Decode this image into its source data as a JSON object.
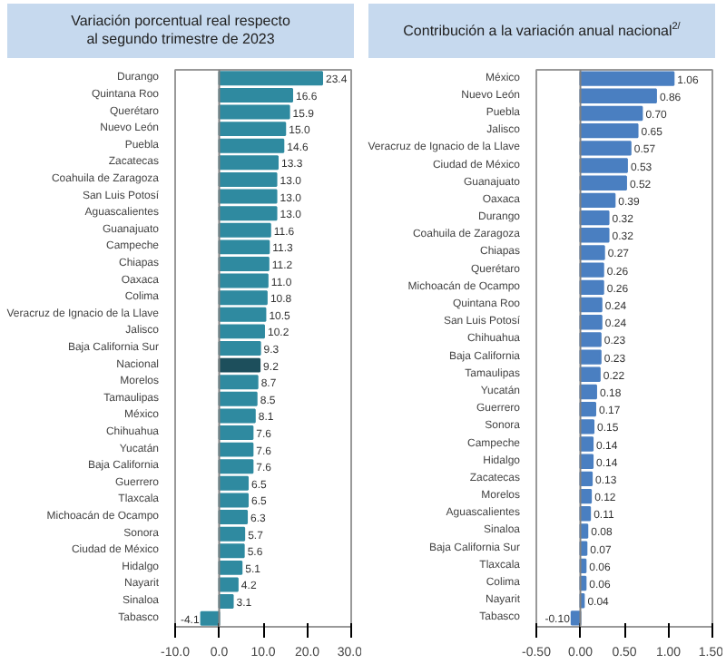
{
  "chart_data": [
    {
      "type": "bar",
      "orientation": "horizontal",
      "title": "Variación porcentual real respecto\nal segundo trimestre de 2023",
      "categories": [
        "Durango",
        "Quintana Roo",
        "Querétaro",
        "Nuevo León",
        "Puebla",
        "Zacatecas",
        "Coahuila de Zaragoza",
        "San Luis Potosí",
        "Aguascalientes",
        "Guanajuato",
        "Campeche",
        "Chiapas",
        "Oaxaca",
        "Colima",
        "Veracruz de Ignacio de la Llave",
        "Jalisco",
        "Baja California Sur",
        "Nacional",
        "Morelos",
        "Tamaulipas",
        "México",
        "Chihuahua",
        "Yucatán",
        "Baja California",
        "Guerrero",
        "Tlaxcala",
        "Michoacán de Ocampo",
        "Sonora",
        "Ciudad de México",
        "Hidalgo",
        "Nayarit",
        "Sinaloa",
        "Tabasco"
      ],
      "values": [
        23.4,
        16.6,
        15.9,
        15.0,
        14.6,
        13.3,
        13.0,
        13.0,
        13.0,
        11.6,
        11.3,
        11.2,
        11.0,
        10.8,
        10.5,
        10.2,
        9.3,
        9.2,
        8.7,
        8.5,
        8.1,
        7.6,
        7.6,
        7.6,
        6.5,
        6.5,
        6.3,
        5.7,
        5.6,
        5.1,
        4.2,
        3.1,
        -4.1
      ],
      "value_labels": [
        "23.4",
        "16.6",
        "15.9",
        "15.0",
        "14.6",
        "13.3",
        "13.0",
        "13.0",
        "13.0",
        "11.6",
        "11.3",
        "11.2",
        "11.0",
        "10.8",
        "10.5",
        "10.2",
        "9.3",
        "9.2",
        "8.7",
        "8.5",
        "8.1",
        "7.6",
        "7.6",
        "7.6",
        "6.5",
        "6.5",
        "6.3",
        "5.7",
        "5.6",
        "5.1",
        "4.2",
        "3.1",
        "-4.1"
      ],
      "colors": [
        "#2f8aa0",
        "#2f8aa0",
        "#2f8aa0",
        "#2f8aa0",
        "#2f8aa0",
        "#2f8aa0",
        "#2f8aa0",
        "#2f8aa0",
        "#2f8aa0",
        "#2f8aa0",
        "#2f8aa0",
        "#2f8aa0",
        "#2f8aa0",
        "#2f8aa0",
        "#2f8aa0",
        "#2f8aa0",
        "#2f8aa0",
        "#1d4f5c",
        "#2f8aa0",
        "#2f8aa0",
        "#2f8aa0",
        "#2f8aa0",
        "#2f8aa0",
        "#2f8aa0",
        "#2f8aa0",
        "#2f8aa0",
        "#2f8aa0",
        "#2f8aa0",
        "#2f8aa0",
        "#2f8aa0",
        "#2f8aa0",
        "#2f8aa0",
        "#2f8aa0"
      ],
      "xlim": [
        -10,
        30
      ],
      "xticks": [
        {
          "value": -10,
          "label": "-10.0"
        },
        {
          "value": 0,
          "label": "0.0"
        },
        {
          "value": 10,
          "label": "10.0"
        },
        {
          "value": 20,
          "label": "20.0"
        },
        {
          "value": 30,
          "label": "30.0"
        }
      ],
      "ref_lines": [
        {
          "axis": "x",
          "value": 0,
          "color": "#808080"
        }
      ],
      "grid": false
    },
    {
      "type": "bar",
      "orientation": "horizontal",
      "title": "Contribución a la variación anual nacional$^{2/}$",
      "categories": [
        "México",
        "Nuevo León",
        "Puebla",
        "Jalisco",
        "Veracruz de Ignacio de la Llave",
        "Ciudad de México",
        "Guanajuato",
        "Oaxaca",
        "Durango",
        "Coahuila de Zaragoza",
        "Chiapas",
        "Querétaro",
        "Michoacán de Ocampo",
        "Quintana Roo",
        "San Luis Potosí",
        "Chihuahua",
        "Baja California",
        "Tamaulipas",
        "Yucatán",
        "Guerrero",
        "Sonora",
        "Campeche",
        "Hidalgo",
        "Zacatecas",
        "Morelos",
        "Aguascalientes",
        "Sinaloa",
        "Baja California Sur",
        "Tlaxcala",
        "Colima",
        "Nayarit",
        "Tabasco"
      ],
      "values": [
        1.06,
        0.86,
        0.7,
        0.65,
        0.57,
        0.53,
        0.52,
        0.39,
        0.32,
        0.32,
        0.27,
        0.26,
        0.26,
        0.24,
        0.24,
        0.23,
        0.23,
        0.22,
        0.18,
        0.17,
        0.15,
        0.14,
        0.14,
        0.13,
        0.12,
        0.11,
        0.08,
        0.07,
        0.06,
        0.06,
        0.04,
        -0.1
      ],
      "value_labels": [
        "1.06",
        "0.86",
        "0.70",
        "0.65",
        "0.57",
        "0.53",
        "0.52",
        "0.39",
        "0.32",
        "0.32",
        "0.27",
        "0.26",
        "0.26",
        "0.24",
        "0.24",
        "0.23",
        "0.23",
        "0.22",
        "0.18",
        "0.17",
        "0.15",
        "0.14",
        "0.14",
        "0.13",
        "0.12",
        "0.11",
        "0.08",
        "0.07",
        "0.06",
        "0.06",
        "0.04",
        "-0.10"
      ],
      "color": "#4a7fc1",
      "xlim": [
        -0.5,
        1.5
      ],
      "xticks": [
        {
          "value": -0.5,
          "label": "-0.50"
        },
        {
          "value": 0,
          "label": "0.00"
        },
        {
          "value": 0.5,
          "label": "0.50"
        },
        {
          "value": 1,
          "label": "1.00"
        },
        {
          "value": 1.5,
          "label": "1.50"
        }
      ],
      "ref_lines": [
        {
          "axis": "x",
          "value": 0,
          "color": "#808080"
        }
      ],
      "grid": false
    }
  ]
}
